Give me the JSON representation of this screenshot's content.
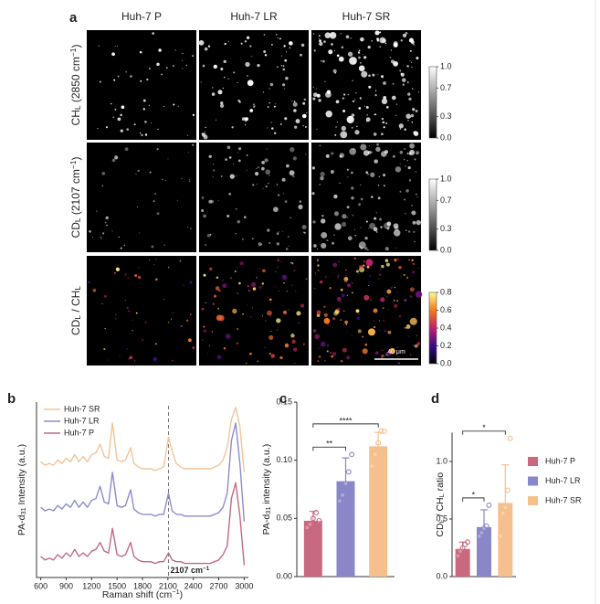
{
  "figure_a": {
    "label": "a",
    "columns": [
      "Huh-7 P",
      "Huh-7 LR",
      "Huh-7 SR"
    ],
    "rows": [
      [
        "CH",
        {
          "sub": "L"
        },
        " (2850 cm",
        {
          "sup": "−1"
        },
        ")"
      ],
      [
        "CD",
        {
          "sub": "L"
        },
        " (2107 cm",
        {
          "sup": "−1"
        },
        ")"
      ],
      [
        "CD",
        {
          "sub": "L"
        },
        " / CH",
        {
          "sub": "L"
        }
      ]
    ],
    "colorbars": [
      {
        "colormap": "gray",
        "lim": [
          0,
          1
        ],
        "ticks": [
          {
            "value": 0,
            "label": "0.0"
          },
          0.3,
          0.7,
          {
            "value": 1,
            "label": "1.0"
          }
        ]
      },
      {
        "colormap": "gray",
        "lim": [
          0,
          1
        ],
        "ticks": [
          {
            "value": 0,
            "label": "0.0"
          },
          0.3,
          0.7,
          {
            "value": 1,
            "label": "1.0"
          }
        ]
      },
      {
        "colormap": "fire",
        "lim": [
          0,
          0.8
        ],
        "ticks": [
          {
            "value": 0,
            "label": "0.0"
          },
          0.2,
          0.4,
          0.6,
          0.8
        ]
      }
    ],
    "scale_bar": "40 μm"
  },
  "chart_data": [
    {
      "type": "line",
      "label": "b",
      "xlabel": [
        "Raman shift (cm",
        {
          "sup": "−1"
        },
        ")"
      ],
      "ylabel": [
        "PA-d",
        {
          "sub": "31"
        },
        " Intensity (a.u.)"
      ],
      "x": [
        600,
        650,
        700,
        750,
        800,
        850,
        900,
        950,
        1000,
        1050,
        1100,
        1150,
        1200,
        1250,
        1300,
        1350,
        1400,
        1445,
        1500,
        1550,
        1600,
        1660,
        1700,
        1750,
        1800,
        1850,
        1900,
        1950,
        2000,
        2050,
        2107,
        2150,
        2200,
        2250,
        2300,
        2400,
        2500,
        2600,
        2700,
        2750,
        2800,
        2850,
        2900,
        2950,
        3000
      ],
      "series": [
        {
          "name": "Huh-7 SR",
          "color": "#f3c497",
          "values": [
            6.6,
            6.4,
            6.5,
            6.4,
            6.7,
            6.5,
            6.8,
            6.6,
            7.0,
            6.6,
            6.9,
            6.6,
            7.0,
            7.1,
            7.6,
            6.9,
            6.8,
            8.8,
            6.7,
            6.6,
            6.7,
            7.4,
            6.5,
            6.3,
            6.2,
            6.2,
            6.2,
            6.1,
            6.2,
            6.3,
            8.0,
            7.2,
            6.5,
            6.3,
            6.2,
            6.2,
            6.2,
            6.2,
            6.4,
            6.7,
            7.4,
            9.0,
            9.7,
            8.6,
            6.0
          ]
        },
        {
          "name": "Huh-7 LR",
          "color": "#8c8ccc",
          "values": [
            4.0,
            3.8,
            3.9,
            3.8,
            4.1,
            3.9,
            4.2,
            4.0,
            4.4,
            4.0,
            4.3,
            4.0,
            4.4,
            4.5,
            5.2,
            4.3,
            4.2,
            6.0,
            4.1,
            4.0,
            4.1,
            5.0,
            3.9,
            3.7,
            3.6,
            3.6,
            3.6,
            3.5,
            3.6,
            3.6,
            4.8,
            3.8,
            3.6,
            3.6,
            3.5,
            3.5,
            3.5,
            3.5,
            3.7,
            4.0,
            4.8,
            7.8,
            8.8,
            6.5,
            3.2
          ]
        },
        {
          "name": "Huh-7 P",
          "color": "#c26a84",
          "values": [
            1.2,
            1.0,
            1.1,
            1.0,
            1.3,
            1.1,
            1.4,
            1.2,
            1.6,
            1.2,
            1.4,
            1.2,
            1.5,
            1.6,
            2.0,
            1.5,
            1.4,
            2.8,
            1.3,
            1.2,
            1.3,
            2.0,
            1.2,
            1.0,
            0.9,
            0.9,
            0.9,
            0.8,
            0.9,
            0.9,
            1.4,
            1.0,
            0.9,
            0.9,
            0.8,
            0.8,
            0.8,
            0.8,
            1.0,
            1.3,
            1.8,
            4.5,
            5.4,
            3.5,
            0.7
          ]
        }
      ],
      "xlim": [
        550,
        3050
      ],
      "xticks": [
        600,
        900,
        1200,
        1500,
        1800,
        2100,
        2400,
        2700,
        3000
      ],
      "ylim": [
        0,
        10
      ],
      "legend": "upper left",
      "annotations": [
        {
          "x": 2107,
          "text": [
            "2107 cm",
            {
              "sup": "−1"
            }
          ]
        }
      ]
    },
    {
      "type": "bar",
      "label": "c",
      "ylabel": [
        "PA-d",
        {
          "sub": "31"
        },
        " intensity (a.u.)"
      ],
      "colors": [
        "#c9697f",
        "#8a87c8",
        "#f6c08e"
      ],
      "values": [
        0.048,
        0.082,
        0.112
      ],
      "errors": [
        0.008,
        0.02,
        0.012
      ],
      "points": [
        [
          0.042,
          0.045,
          0.05,
          0.055,
          0.048
        ],
        [
          0.065,
          0.07,
          0.08,
          0.09,
          0.105
        ],
        [
          0.095,
          0.105,
          0.115,
          0.125,
          0.125
        ]
      ],
      "ylim": [
        0,
        0.15
      ],
      "yticks": [
        {
          "value": 0,
          "label": "0.00"
        },
        {
          "value": 0.05,
          "label": "0.05"
        },
        {
          "value": 0.1,
          "label": "0.10"
        },
        {
          "value": 0.15,
          "label": "0.15"
        }
      ],
      "significance": [
        {
          "from": 0,
          "to": 1,
          "text": "**"
        },
        {
          "from": 0,
          "to": 2,
          "text": "****"
        }
      ]
    },
    {
      "type": "bar",
      "label": "d",
      "ylabel": [
        "CD",
        {
          "sub": "L"
        },
        " / CH",
        {
          "sub": "L"
        },
        " ratio"
      ],
      "categories": [
        "Huh-7 P",
        "Huh-7 LR",
        "Huh-7  SR"
      ],
      "colors": [
        "#c9697f",
        "#8a87c8",
        "#f6c08e"
      ],
      "values": [
        0.24,
        0.43,
        0.64
      ],
      "errors": [
        0.06,
        0.15,
        0.33
      ],
      "points": [
        [
          0.18,
          0.22,
          0.25,
          0.28,
          0.3
        ],
        [
          0.35,
          0.38,
          0.42,
          0.44,
          0.62
        ],
        [
          0.35,
          0.55,
          0.6,
          0.75,
          1.2
        ]
      ],
      "ylim": [
        0,
        1.25
      ],
      "yticks": [
        {
          "value": 0,
          "label": "0.0"
        },
        0.5,
        {
          "value": 1,
          "label": "1.0"
        }
      ],
      "significance": [
        {
          "from": 0,
          "to": 1,
          "text": "*"
        },
        {
          "from": 0,
          "to": 2,
          "text": "*"
        }
      ],
      "legend": "right"
    }
  ]
}
